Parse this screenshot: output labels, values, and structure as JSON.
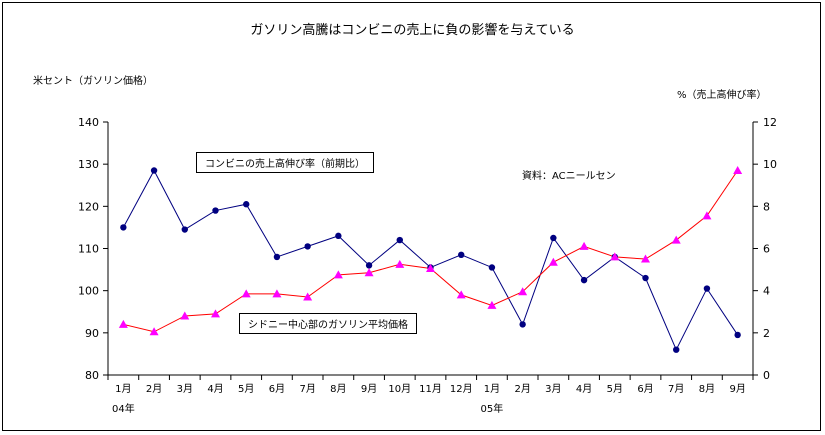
{
  "chart_data": {
    "type": "line",
    "title": "ガソリン高騰はコンビニの売上に負の影響を与えている",
    "left_axis_label": "米セント（ガソリン価格）",
    "right_axis_label": "%（売上高伸び率）",
    "source_note": "資料：ACニールセン",
    "categories": [
      "1月",
      "2月",
      "3月",
      "4月",
      "5月",
      "6月",
      "7月",
      "8月",
      "9月",
      "10月",
      "11月",
      "12月",
      "1月",
      "2月",
      "3月",
      "4月",
      "5月",
      "6月",
      "7月",
      "8月",
      "9月"
    ],
    "year_labels": [
      {
        "index": 0,
        "label": "04年"
      },
      {
        "index": 12,
        "label": "05年"
      }
    ],
    "left_axis": {
      "ylim": [
        80,
        140
      ],
      "ticks": [
        80,
        90,
        100,
        110,
        120,
        130,
        140
      ]
    },
    "right_axis": {
      "ylim": [
        0,
        12
      ],
      "ticks": [
        0,
        2,
        4,
        6,
        8,
        10,
        12
      ]
    },
    "grid": false,
    "series": [
      {
        "name": "シドニー中心部のガソリン平均価格",
        "axis": "left",
        "color": "#000080",
        "marker": "circle",
        "values": [
          115,
          128.5,
          114.5,
          119,
          120.5,
          108,
          110.5,
          113,
          106,
          112,
          105.5,
          108.5,
          105.5,
          92,
          112.5,
          102.5,
          108,
          103,
          86,
          100.5,
          89.5
        ]
      },
      {
        "name": "コンビニの売上高伸び率（前期比）",
        "axis": "right",
        "color": "#ff0000",
        "marker_color": "#ff00ff",
        "marker": "triangle",
        "values": [
          2.4,
          2.05,
          2.8,
          2.9,
          3.85,
          3.85,
          3.7,
          4.75,
          4.85,
          5.25,
          5.05,
          3.8,
          3.3,
          3.95,
          5.35,
          6.1,
          5.6,
          5.5,
          6.4,
          7.55,
          9.7
        ]
      }
    ]
  }
}
